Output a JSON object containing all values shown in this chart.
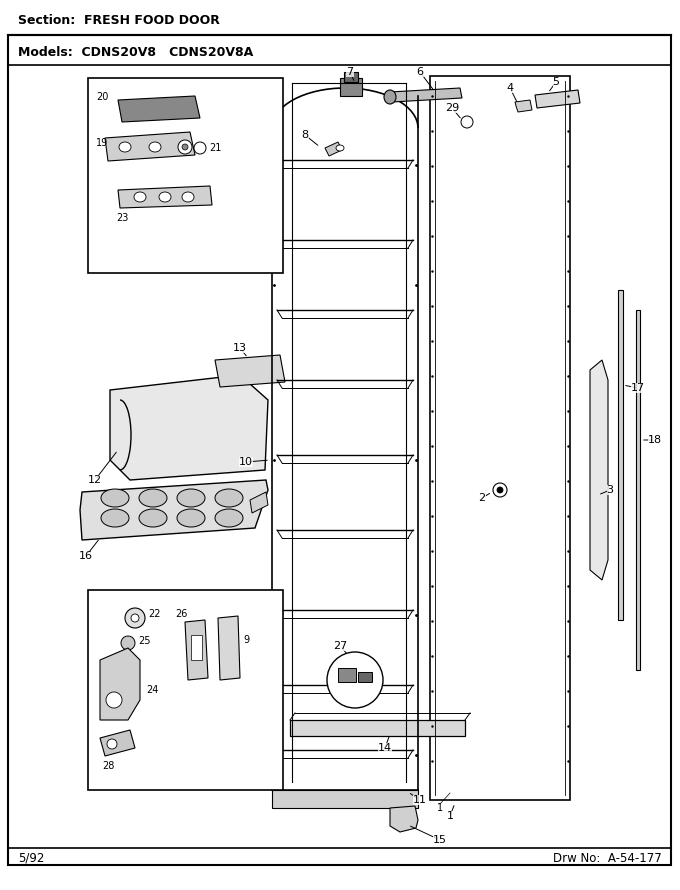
{
  "title_section": "Section:  FRESH FOOD DOOR",
  "models_line": "Models:  CDNS20V8   CDNS20V8A",
  "footer_left": "5/92",
  "footer_right": "Drw No:  A-54-177",
  "bg_color": "#ffffff"
}
